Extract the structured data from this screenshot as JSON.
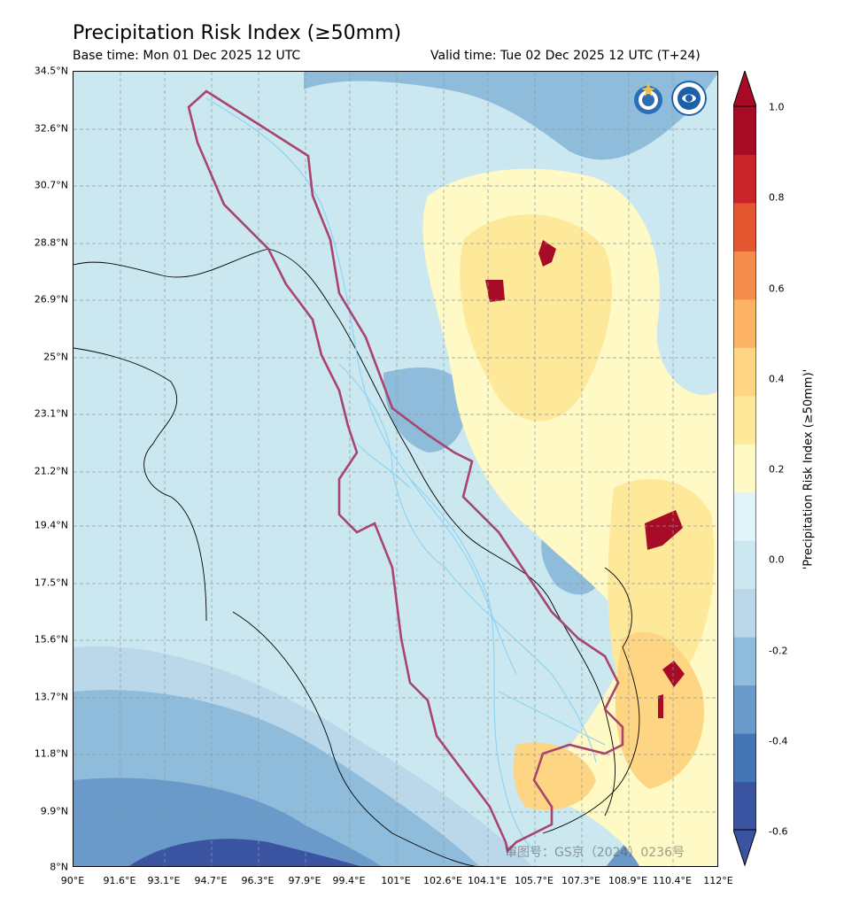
{
  "header": {
    "title": "Precipitation Risk Index (≥50mm)",
    "base_time": "Base time: Mon 01 Dec 2025 12 UTC",
    "valid_time": "Valid time: Tue 02 Dec 2025 12 UTC (T+24)"
  },
  "map": {
    "region": "Lancang-Mekong basin",
    "lat_ticks": [
      "34.5°N",
      "32.6°N",
      "30.7°N",
      "28.8°N",
      "26.9°N",
      "25°N",
      "23.1°N",
      "21.2°N",
      "19.4°N",
      "17.5°N",
      "15.6°N",
      "13.7°N",
      "11.8°N",
      "9.9°N",
      "8°N"
    ],
    "lon_ticks": [
      "90°E",
      "91.6°E",
      "93.1°E",
      "94.7°E",
      "96.3°E",
      "97.9°E",
      "99.4°E",
      "101°E",
      "102.6°E",
      "104.1°E",
      "105.7°E",
      "107.3°E",
      "108.9°E",
      "110.4°E",
      "112°E"
    ],
    "lat_range": [
      8,
      34.5
    ],
    "lon_range": [
      90,
      112
    ],
    "watermark": "审图号：GS京（2024）0236号",
    "logos": [
      "wmo-logo",
      "cma-logo"
    ],
    "basin_outline_color": "#a8446e",
    "river_color": "#8fd3f4"
  },
  "colorbar": {
    "title": "'Precipitation Risk Index (≥50mm)'",
    "labels": [
      "1.0",
      "0.8",
      "0.6",
      "0.4",
      "0.2",
      "0.0",
      "-0.2",
      "-0.4",
      "-0.6"
    ],
    "range": [
      -0.6,
      1.0
    ],
    "colors": [
      "#3b54a2",
      "#4575b4",
      "#6a9ac9",
      "#8fbcdb",
      "#bad8ea",
      "#cde7f0",
      "#e0f3f8",
      "#fef9c5",
      "#fee89a",
      "#fed583",
      "#fdb364",
      "#f68c4b",
      "#e4562f",
      "#c9242a",
      "#a70b26"
    ]
  }
}
